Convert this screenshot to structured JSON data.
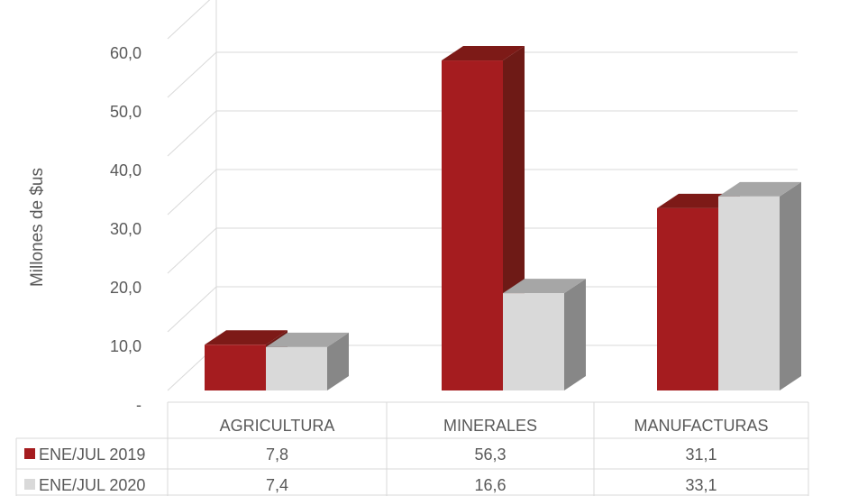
{
  "chart_data": {
    "type": "bar",
    "style": "3d-clustered-with-data-table",
    "ylabel": "Millones de $us",
    "ylim": [
      0,
      60
    ],
    "yticks": [
      "-",
      "10,0",
      "20,0",
      "30,0",
      "40,0",
      "50,0",
      "60,0"
    ],
    "grid": true,
    "categories": [
      "AGRICULTURA",
      "MINERALES",
      "MANUFACTURAS"
    ],
    "series": [
      {
        "name": "ENE/JUL 2019",
        "values": [
          7.8,
          56.3,
          31.1
        ],
        "labels": [
          "7,8",
          "56,3",
          "31,1"
        ],
        "color": "#A51C1F",
        "side_color": "#6E1A16",
        "top_color": "#7D1A17"
      },
      {
        "name": "ENE/JUL 2020",
        "values": [
          7.4,
          16.6,
          33.1
        ],
        "labels": [
          "7,4",
          "16,6",
          "33,1"
        ],
        "color": "#D9D9D9",
        "side_color": "#878787",
        "top_color": "#A6A6A6"
      }
    ],
    "legend": "data-table-left"
  }
}
